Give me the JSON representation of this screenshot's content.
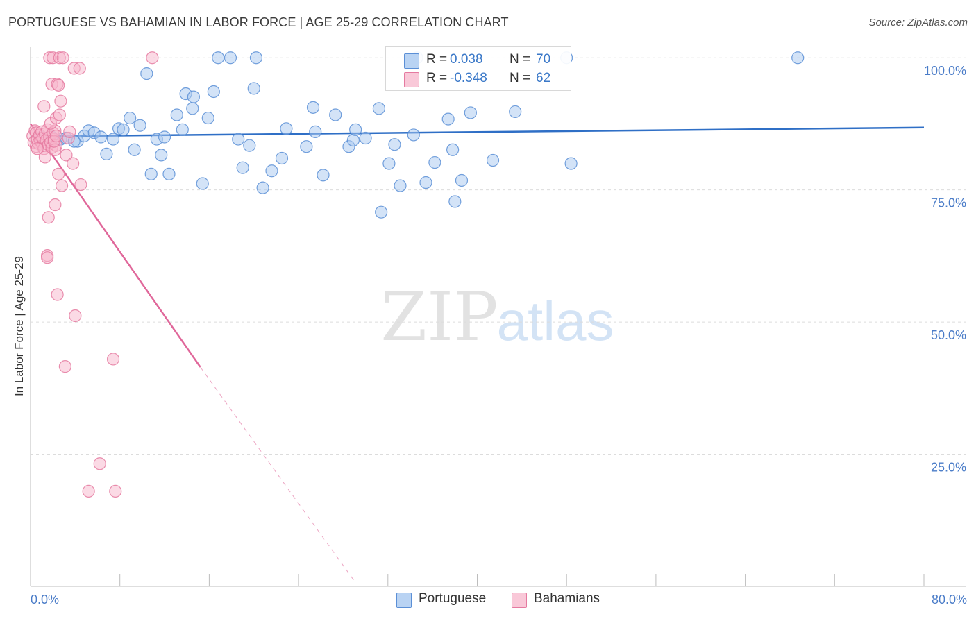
{
  "title": "PORTUGUESE VS BAHAMIAN IN LABOR FORCE | AGE 25-29 CORRELATION CHART",
  "source": "Source: ZipAtlas.com",
  "watermark": {
    "zip": "ZIP",
    "atlas": "atlas"
  },
  "colors": {
    "blue_fill": "#a8c8f0",
    "blue_stroke": "#5b8fd6",
    "blue_line": "#2f6fc6",
    "pink_fill": "#f7b6cc",
    "pink_stroke": "#e57aa0",
    "pink_line": "#e0679a",
    "tick_label": "#4a7cc8",
    "grid": "#dcdcdc"
  },
  "legend": {
    "rows": [
      {
        "r_label": "R =",
        "r_value": "0.038",
        "n_label": "N =",
        "n_value": "70"
      },
      {
        "r_label": "R =",
        "r_value": "-0.348",
        "n_label": "N =",
        "n_value": "62"
      }
    ]
  },
  "bottom_legend": {
    "portuguese": "Portuguese",
    "bahamians": "Bahamians"
  },
  "chart_data": {
    "type": "scatter",
    "title": "PORTUGUESE VS BAHAMIAN IN LABOR FORCE | AGE 25-29 CORRELATION CHART",
    "xlabel": "",
    "ylabel": "In Labor Force | Age 25-29",
    "xlim": [
      0,
      80
    ],
    "ylim": [
      0,
      102
    ],
    "x_tick_labels": [
      "0.0%",
      "80.0%"
    ],
    "y_ticks": [
      25,
      50,
      75,
      100
    ],
    "y_tick_labels": [
      "25.0%",
      "50.0%",
      "75.0%",
      "100.0%"
    ],
    "series": [
      {
        "name": "Portuguese",
        "r": 0.038,
        "n": 70,
        "trend": {
          "x0": 0,
          "y0": 85.1,
          "x1": 80,
          "y1": 86.8
        },
        "points": [
          [
            1.0,
            85.0
          ],
          [
            2.7,
            84.6
          ],
          [
            3.2,
            84.8
          ],
          [
            4.2,
            84.2
          ],
          [
            4.8,
            85.2
          ],
          [
            5.2,
            86.2
          ],
          [
            5.7,
            85.8
          ],
          [
            6.3,
            85.0
          ],
          [
            6.8,
            81.8
          ],
          [
            7.4,
            84.6
          ],
          [
            7.9,
            86.6
          ],
          [
            8.3,
            86.4
          ],
          [
            8.9,
            88.6
          ],
          [
            9.3,
            82.6
          ],
          [
            9.8,
            87.2
          ],
          [
            10.4,
            97.0
          ],
          [
            10.8,
            78.0
          ],
          [
            11.3,
            84.6
          ],
          [
            11.7,
            81.6
          ],
          [
            12.4,
            78.0
          ],
          [
            13.1,
            89.2
          ],
          [
            13.6,
            86.4
          ],
          [
            13.9,
            93.2
          ],
          [
            14.5,
            90.4
          ],
          [
            14.6,
            92.6
          ],
          [
            15.4,
            76.2
          ],
          [
            15.9,
            88.6
          ],
          [
            16.4,
            93.6
          ],
          [
            16.8,
            100.0
          ],
          [
            17.9,
            100.0
          ],
          [
            18.6,
            84.6
          ],
          [
            19.0,
            79.2
          ],
          [
            19.6,
            83.4
          ],
          [
            20.0,
            94.2
          ],
          [
            20.2,
            100.0
          ],
          [
            20.8,
            75.4
          ],
          [
            21.6,
            78.6
          ],
          [
            22.5,
            81.0
          ],
          [
            22.9,
            86.6
          ],
          [
            24.7,
            83.2
          ],
          [
            25.3,
            90.6
          ],
          [
            26.2,
            77.8
          ],
          [
            27.3,
            89.2
          ],
          [
            28.5,
            83.2
          ],
          [
            28.9,
            84.4
          ],
          [
            29.1,
            86.4
          ],
          [
            31.2,
            90.4
          ],
          [
            31.4,
            70.8
          ],
          [
            32.1,
            80.0
          ],
          [
            32.6,
            83.6
          ],
          [
            33.1,
            75.8
          ],
          [
            34.3,
            85.4
          ],
          [
            34.6,
            100.0
          ],
          [
            35.4,
            76.4
          ],
          [
            36.2,
            80.2
          ],
          [
            37.4,
            88.4
          ],
          [
            37.8,
            82.6
          ],
          [
            38.0,
            72.8
          ],
          [
            38.6,
            76.8
          ],
          [
            39.4,
            89.6
          ],
          [
            41.4,
            80.6
          ],
          [
            43.4,
            89.8
          ],
          [
            48.0,
            100.0
          ],
          [
            48.4,
            80.0
          ],
          [
            68.7,
            100.0
          ],
          [
            1.9,
            85.0
          ],
          [
            3.9,
            84.2
          ],
          [
            12.0,
            85.0
          ],
          [
            25.5,
            86.0
          ],
          [
            30.0,
            84.8
          ]
        ]
      },
      {
        "name": "Bahamians",
        "r": -0.348,
        "n": 62,
        "trend": {
          "x0": 0,
          "y0": 87.5,
          "x1": 15.2,
          "y1": 41.5
        },
        "trend_dashed": {
          "x0": 15.2,
          "y0": 41.5,
          "x1": 29.0,
          "y1": 1.0
        },
        "points": [
          [
            0.2,
            85.2
          ],
          [
            0.3,
            84.0
          ],
          [
            0.4,
            86.2
          ],
          [
            0.5,
            83.2
          ],
          [
            0.5,
            85.8
          ],
          [
            0.6,
            84.6
          ],
          [
            0.7,
            83.8
          ],
          [
            0.8,
            85.4
          ],
          [
            0.9,
            84.2
          ],
          [
            1.0,
            86.0
          ],
          [
            1.1,
            83.4
          ],
          [
            1.1,
            84.8
          ],
          [
            1.2,
            82.8
          ],
          [
            1.3,
            85.6
          ],
          [
            1.4,
            84.4
          ],
          [
            1.5,
            86.4
          ],
          [
            1.6,
            83.6
          ],
          [
            1.7,
            85.0
          ],
          [
            1.8,
            84.0
          ],
          [
            1.9,
            83.0
          ],
          [
            2.0,
            85.8
          ],
          [
            2.1,
            84.6
          ],
          [
            2.2,
            86.2
          ],
          [
            2.3,
            83.4
          ],
          [
            0.6,
            82.8
          ],
          [
            1.2,
            90.8
          ],
          [
            1.3,
            81.2
          ],
          [
            1.5,
            62.6
          ],
          [
            1.6,
            69.8
          ],
          [
            1.5,
            62.2
          ],
          [
            1.7,
            100.0
          ],
          [
            1.8,
            87.6
          ],
          [
            1.9,
            95.0
          ],
          [
            2.0,
            100.0
          ],
          [
            2.2,
            82.6
          ],
          [
            2.1,
            84.2
          ],
          [
            2.3,
            85.2
          ],
          [
            2.4,
            95.0
          ],
          [
            2.2,
            72.2
          ],
          [
            2.3,
            88.6
          ],
          [
            2.5,
            78.0
          ],
          [
            2.4,
            55.2
          ],
          [
            2.6,
            89.2
          ],
          [
            2.5,
            94.8
          ],
          [
            2.7,
            91.8
          ],
          [
            2.6,
            100.0
          ],
          [
            2.8,
            75.8
          ],
          [
            2.9,
            100.0
          ],
          [
            3.2,
            81.6
          ],
          [
            3.4,
            84.8
          ],
          [
            3.1,
            41.6
          ],
          [
            3.5,
            86.0
          ],
          [
            3.8,
            80.0
          ],
          [
            3.9,
            98.0
          ],
          [
            4.0,
            51.2
          ],
          [
            4.4,
            98.0
          ],
          [
            4.5,
            76.0
          ],
          [
            5.2,
            18.0
          ],
          [
            6.2,
            23.2
          ],
          [
            7.4,
            43.0
          ],
          [
            7.6,
            18.0
          ],
          [
            10.9,
            100.0
          ]
        ]
      }
    ]
  }
}
